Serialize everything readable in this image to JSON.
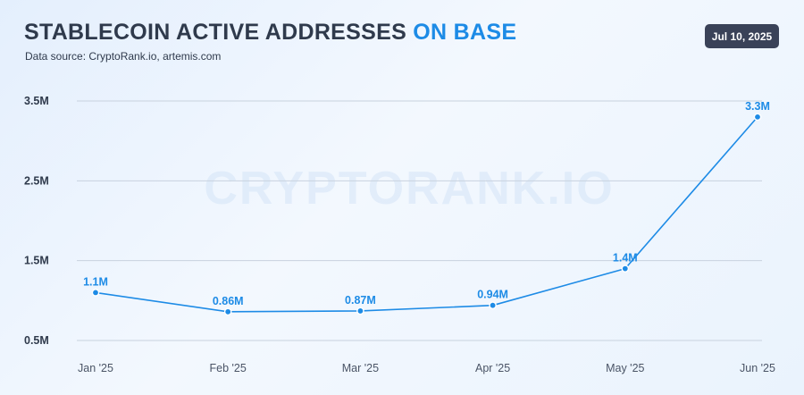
{
  "title": {
    "main": "STABLECOIN ACTIVE ADDRESSES",
    "accent": "ON BASE"
  },
  "subtitle": "Data source: CryptoRank.io, artemis.com",
  "date_badge": "Jul 10, 2025",
  "watermark": "CRYPTORANK.IO",
  "colors": {
    "line": "#1d8be6",
    "point_fill": "#1d8be6",
    "grid": "#c8d2df",
    "title": "#2f3a4c",
    "accent": "#1d8be6",
    "badge": "#3a4258"
  },
  "chart_data": {
    "type": "line",
    "title": "STABLECOIN ACTIVE ADDRESSES ON BASE",
    "categories": [
      "Jan '25",
      "Feb '25",
      "Mar '25",
      "Apr '25",
      "May '25",
      "Jun '25"
    ],
    "series": [
      {
        "values": [
          1.1,
          0.86,
          0.87,
          0.94,
          1.4,
          3.3
        ],
        "labels": [
          "1.1M",
          "0.86M",
          "0.87M",
          "0.94M",
          "1.4M",
          "3.3M"
        ]
      }
    ],
    "y_unit": "M",
    "yticks": [
      0.5,
      1.5,
      2.5,
      3.5
    ],
    "ytick_labels": [
      "0.5M",
      "1.5M",
      "2.5M",
      "3.5M"
    ],
    "ylim": [
      0.5,
      3.5
    ],
    "grid": true,
    "legend": "none"
  }
}
